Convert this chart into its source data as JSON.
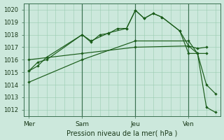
{
  "title": "Pression niveau de la mer( hPa )",
  "bg_color": "#cce8dc",
  "grid_color": "#99ccb0",
  "line_color": "#1a5c1a",
  "ylim": [
    1011.5,
    1020.5
  ],
  "yticks": [
    1012,
    1013,
    1014,
    1015,
    1016,
    1017,
    1018,
    1019,
    1020
  ],
  "xtick_labels": [
    "Mer",
    "Sam",
    "Jeu",
    "Ven"
  ],
  "xtick_positions": [
    0,
    3,
    6,
    9
  ],
  "xlim": [
    -0.3,
    10.8
  ],
  "series": [
    {
      "x": [
        0.0,
        0.5,
        1.0,
        3.0,
        3.5,
        4.0,
        4.5,
        5.0,
        5.5,
        6.0,
        6.5,
        7.0,
        7.5,
        8.5,
        9.0,
        9.5,
        10.0
      ],
      "y": [
        1015.1,
        1015.8,
        1016.0,
        1018.0,
        1017.4,
        1018.0,
        1018.1,
        1018.5,
        1018.5,
        1019.95,
        1019.3,
        1019.7,
        1019.4,
        1018.3,
        1016.5,
        1016.5,
        1016.5
      ]
    },
    {
      "x": [
        0.0,
        0.5,
        1.0,
        3.0,
        3.5,
        4.5,
        5.5,
        6.0,
        6.5,
        7.0,
        7.5,
        8.5,
        9.0,
        9.5,
        10.0
      ],
      "y": [
        1015.1,
        1015.5,
        1016.2,
        1018.0,
        1017.5,
        1018.15,
        1018.5,
        1019.95,
        1019.3,
        1019.7,
        1019.4,
        1018.3,
        1017.1,
        1016.9,
        1017.0
      ]
    },
    {
      "x": [
        0.0,
        3.0,
        6.0,
        9.0,
        9.5,
        10.0,
        10.5
      ],
      "y": [
        1016.0,
        1016.5,
        1017.0,
        1017.1,
        1016.5,
        1014.0,
        1013.3
      ]
    },
    {
      "x": [
        0.0,
        3.0,
        6.0,
        9.0,
        9.5,
        10.0,
        10.5
      ],
      "y": [
        1014.2,
        1016.0,
        1017.5,
        1017.5,
        1016.5,
        1012.2,
        1011.8
      ]
    }
  ]
}
